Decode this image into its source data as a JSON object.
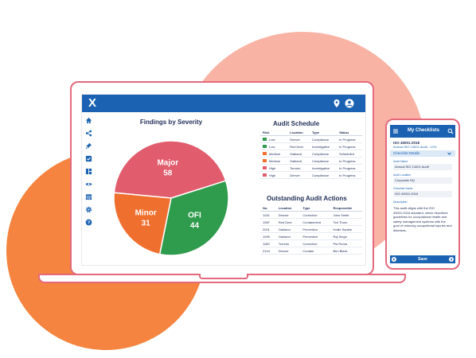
{
  "app": {
    "logo": "X",
    "topbar_icons": [
      "location-pin-icon",
      "user-account-icon"
    ],
    "sidebar_icons": [
      "home-icon",
      "share-icon",
      "pin-icon",
      "checkbox-icon",
      "dashboard-icon",
      "eye-icon",
      "calendar-icon",
      "settings-gear-icon",
      "help-icon"
    ]
  },
  "colors": {
    "brand_blue": "#1b63b2",
    "major": "#e15c6c",
    "minor": "#ef6f2e",
    "ofi": "#2f9b4c",
    "device_outline": "#e4697d"
  },
  "chart_data": {
    "type": "pie",
    "title": "Findings by Severity",
    "slices": [
      {
        "name": "Major",
        "value": 58,
        "color": "#e15c6c"
      },
      {
        "name": "OFI",
        "value": 44,
        "color": "#2f9b4c"
      },
      {
        "name": "Minor",
        "value": 31,
        "color": "#ef6f2e"
      }
    ]
  },
  "audit_schedule": {
    "title": "Audit Schedule",
    "columns": [
      "Risk",
      "Location",
      "Type",
      "Status"
    ],
    "rows": [
      {
        "risk": "Low",
        "color": "#2f9b4c",
        "location": "Denver",
        "type": "Compliance",
        "status": "In Progress"
      },
      {
        "risk": "Low",
        "color": "#2f9b4c",
        "location": "Red Deer",
        "type": "Investigative",
        "status": "In Progress"
      },
      {
        "risk": "Medium",
        "color": "#ef6f2e",
        "location": "Oakland",
        "type": "Compliance",
        "status": "Scheduled"
      },
      {
        "risk": "Medium",
        "color": "#ef6f2e",
        "location": "Oakland",
        "type": "Compliance",
        "status": "In Progress"
      },
      {
        "risk": "High",
        "color": "#e15c6c",
        "location": "Toronto",
        "type": "Investigative",
        "status": "In Progress"
      },
      {
        "risk": "High",
        "color": "#e15c6c",
        "location": "Denver",
        "type": "Compliance",
        "status": "In Progress"
      }
    ]
  },
  "audit_actions": {
    "title": "Outstanding Audit Actions",
    "columns": [
      "No.",
      "Location",
      "Type",
      "Responsible"
    ],
    "rows": [
      {
        "no": "1145",
        "location": "Denver",
        "type": "Corrective",
        "responsible": "John Smith"
      },
      {
        "no": "1987",
        "location": "Red Deer",
        "type": "Containment",
        "responsible": "Ted Thorn"
      },
      {
        "no": "2001",
        "location": "Oakland",
        "type": "Preventive",
        "responsible": "Hollie Santee"
      },
      {
        "no": "1099",
        "location": "Oakland",
        "type": "Preventive",
        "responsible": "Raj Singh"
      },
      {
        "no": "1189",
        "location": "Toronto",
        "type": "Corrective",
        "responsible": "Pia Roma"
      },
      {
        "no": "2104",
        "location": "Denver",
        "type": "Contain",
        "responsible": "Ben Black"
      }
    ]
  },
  "phone": {
    "title": "My Checklists",
    "subtitle": "ISO 45001:2018",
    "subtitle2": "Annual ISO 14001 Audit - 12%",
    "section": "Checklist Details",
    "fields": [
      {
        "label": "Audit Name",
        "value": "Annual ISO 14001 Audit"
      },
      {
        "label": "Audit Location",
        "value": "Corporate HQ"
      },
      {
        "label": "Checklist Name",
        "value": "ISO 45001:2018"
      }
    ],
    "description_label": "Description",
    "description": "This audit aligns with the ISO 45001:2018 standard, which describes guidelines for occupational health and safety management systems with the goal of reducing occupational injuries and diseases.",
    "save_label": "Save"
  }
}
